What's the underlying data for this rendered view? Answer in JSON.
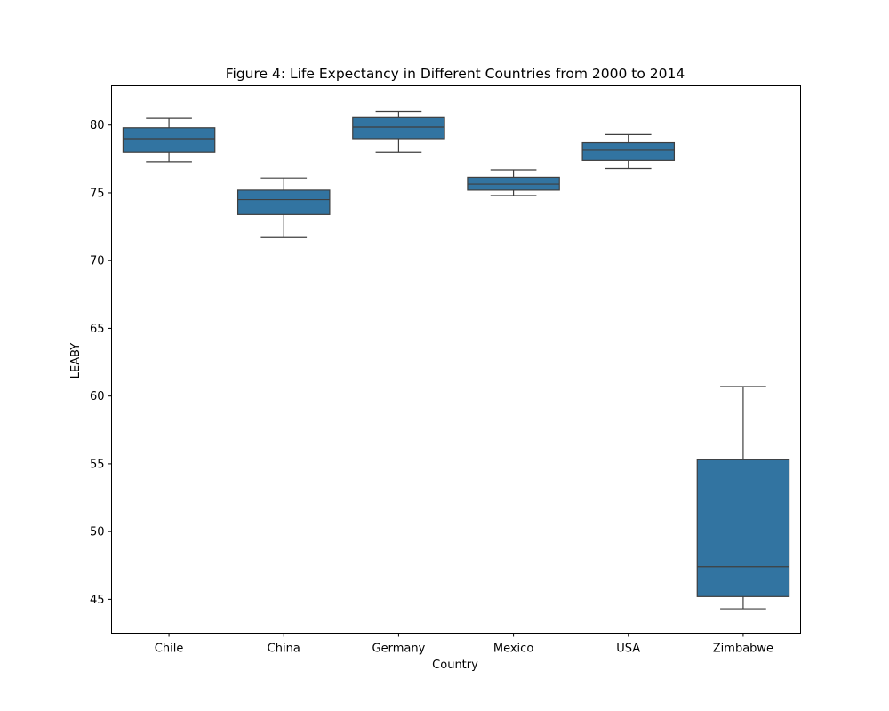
{
  "chart_data": {
    "type": "box",
    "title": "Figure 4: Life Expectancy in Different Countries from 2000 to 2014",
    "xlabel": "Country",
    "ylabel": "LEABY",
    "categories": [
      "Chile",
      "China",
      "Germany",
      "Mexico",
      "USA",
      "Zimbabwe"
    ],
    "ylim": [
      42.5,
      82.9
    ],
    "yticks": [
      45,
      50,
      55,
      60,
      65,
      70,
      75,
      80
    ],
    "grid": false,
    "box_color": "#3274a1",
    "line_color": "#3f3f3f",
    "boxes": [
      {
        "category": "Chile",
        "whislo": 77.3,
        "q1": 78.0,
        "med": 79.0,
        "q3": 79.8,
        "whishi": 80.5
      },
      {
        "category": "China",
        "whislo": 71.7,
        "q1": 73.4,
        "med": 74.5,
        "q3": 75.2,
        "whishi": 76.1
      },
      {
        "category": "Germany",
        "whislo": 78.0,
        "q1": 79.0,
        "med": 79.85,
        "q3": 80.55,
        "whishi": 81.0
      },
      {
        "category": "Mexico",
        "whislo": 74.8,
        "q1": 75.2,
        "med": 75.65,
        "q3": 76.15,
        "whishi": 76.7
      },
      {
        "category": "USA",
        "whislo": 76.8,
        "q1": 77.4,
        "med": 78.15,
        "q3": 78.7,
        "whishi": 79.3
      },
      {
        "category": "Zimbabwe",
        "whislo": 44.3,
        "q1": 45.2,
        "med": 47.4,
        "q3": 55.3,
        "whishi": 60.7
      }
    ]
  }
}
